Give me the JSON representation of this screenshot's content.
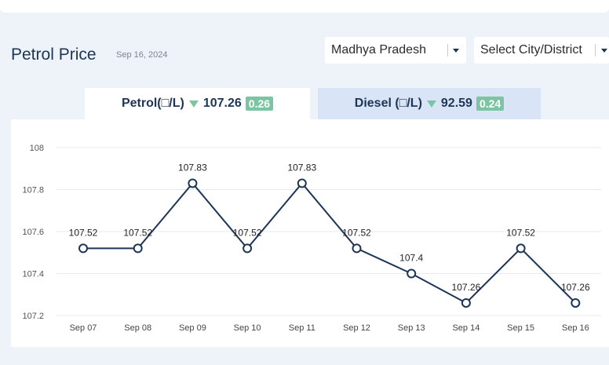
{
  "header": {
    "title": "Petrol Price",
    "date": "Sep 16, 2024",
    "state_select": "Madhya Pradesh",
    "city_select": "Select City/District"
  },
  "tabs": [
    {
      "label": "Petrol(□/L)",
      "price": "107.26",
      "change": "0.26"
    },
    {
      "label": "Diesel (□/L)",
      "price": "92.59",
      "change": "0.24"
    }
  ],
  "colors": {
    "line": "#1d3557",
    "accent": "#7bc5a2",
    "grid": "#e6e9ee"
  },
  "chart_data": {
    "type": "line",
    "categories": [
      "Sep 07",
      "Sep 08",
      "Sep 09",
      "Sep 10",
      "Sep 11",
      "Sep 12",
      "Sep 13",
      "Sep 14",
      "Sep 15",
      "Sep 16"
    ],
    "values": [
      107.52,
      107.52,
      107.83,
      107.52,
      107.83,
      107.52,
      107.4,
      107.26,
      107.52,
      107.26
    ],
    "data_labels": [
      "107.52",
      "107.52",
      "107.83",
      "107.52",
      "107.83",
      "107.52",
      "107.4",
      "107.26",
      "107.52",
      "107.26"
    ],
    "yticks": [
      "107.2",
      "107.4",
      "107.6",
      "107.8",
      "108"
    ],
    "ylim": [
      107.2,
      108
    ],
    "grid": true
  }
}
